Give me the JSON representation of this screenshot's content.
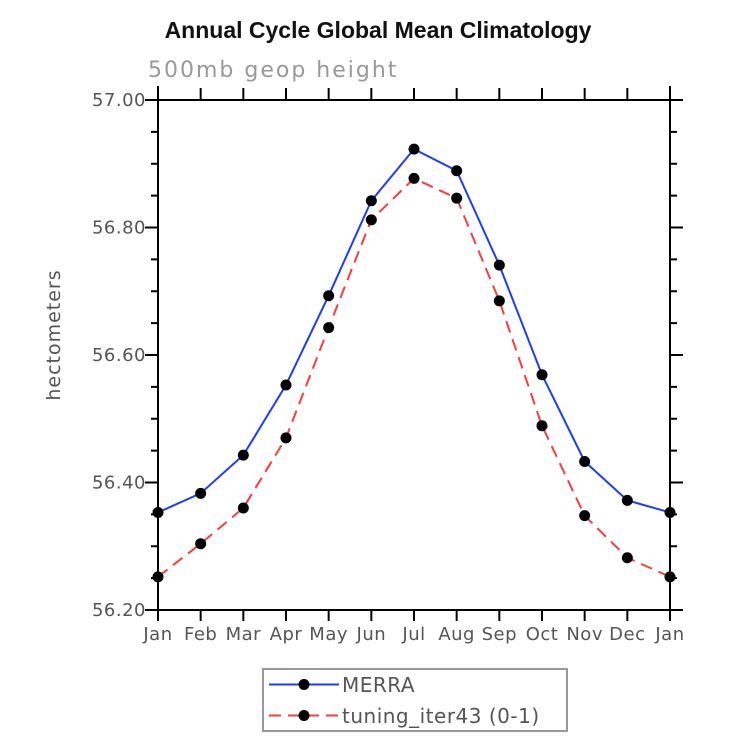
{
  "window": {
    "background_color": "#ffffff"
  },
  "chart_data": {
    "type": "line",
    "title": "Annual Cycle Global Mean Climatology",
    "subtitle": "500mb geop height",
    "ylabel": "hectometers",
    "xlabel": "",
    "categories": [
      "Jan",
      "Feb",
      "Mar",
      "Apr",
      "May",
      "Jun",
      "Jul",
      "Aug",
      "Sep",
      "Oct",
      "Nov",
      "Dec",
      "Jan"
    ],
    "series": [
      {
        "name": "MERRA",
        "line_color": "#1e3cff",
        "line_style": "solid",
        "marker": "circle",
        "marker_color": "#000000",
        "values": [
          56.353,
          56.383,
          56.443,
          56.553,
          56.693,
          56.842,
          56.923,
          56.889,
          56.741,
          56.569,
          56.433,
          56.372,
          56.353
        ]
      },
      {
        "name": "tuning_iter43 (0-1)",
        "line_color": "#fa3c3c",
        "line_style": "dashed",
        "marker": "circle",
        "marker_color": "#000000",
        "values": [
          56.252,
          56.304,
          56.36,
          56.47,
          56.643,
          56.812,
          56.877,
          56.846,
          56.685,
          56.489,
          56.348,
          56.282,
          56.252
        ]
      }
    ],
    "ylim": [
      56.2,
      57.0
    ],
    "ytick_major": 0.2,
    "ytick_minor": 0.05,
    "ytick_labels": [
      "57.00",
      "56.80",
      "56.60",
      "56.40",
      "56.20"
    ],
    "grid": false,
    "legend_position": "bottom-center",
    "axis_color": "#000000",
    "tick_label_color": "#555555"
  }
}
